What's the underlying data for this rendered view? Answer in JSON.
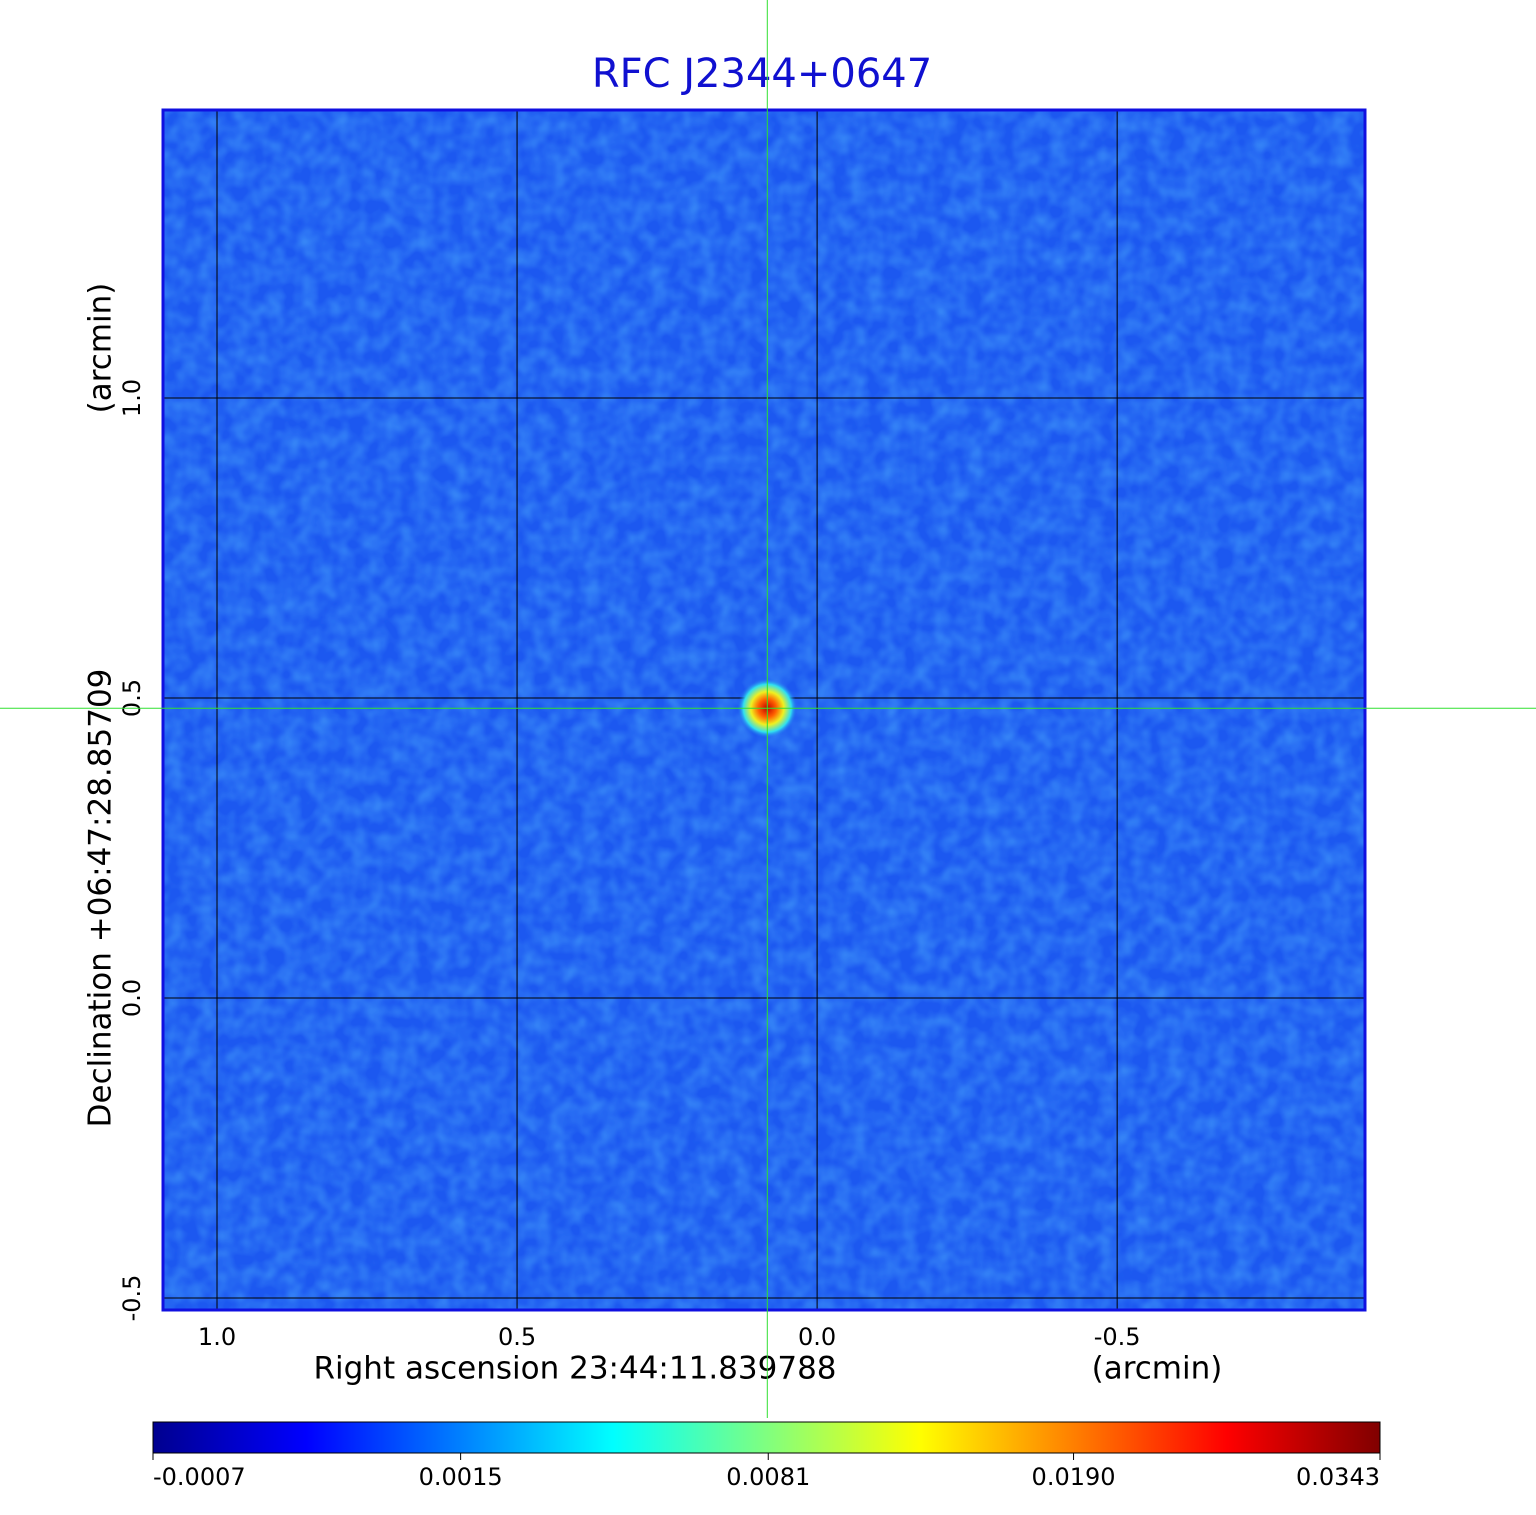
{
  "chart_data": {
    "type": "image",
    "title": "RFC J2344+0647",
    "xlabel": "Right ascension  23:44:11.839788",
    "xunit": "(arcmin)",
    "ylabel": "Declination  +06:47:28.85709",
    "yunit": "(arcmin)",
    "xlim": [
      1.09,
      -0.913
    ],
    "ylim": [
      -0.52,
      1.48
    ],
    "xticks": [
      {
        "value": 1,
        "label": "1.0"
      },
      0.5,
      {
        "value": 0,
        "label": "0.0"
      },
      -0.5
    ],
    "yticks": [
      -0.5,
      {
        "value": 0,
        "label": "0.0"
      },
      0.5,
      {
        "value": 1,
        "label": "1.0"
      }
    ],
    "grid": true,
    "source": {
      "x": 0.083,
      "y": 0.483
    },
    "colorbar": {
      "scale": "sqrt",
      "lim": [
        -0.0007,
        0.0343
      ],
      "ticks": [
        -0.0007,
        0.0015,
        0.0081,
        {
          "value": 0.019,
          "label": "0.0190"
        },
        0.0343
      ]
    }
  }
}
